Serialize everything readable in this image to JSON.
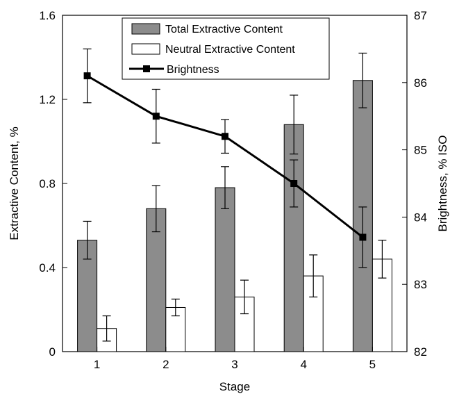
{
  "chart_data": {
    "type": "bar",
    "categories": [
      "1",
      "2",
      "3",
      "4",
      "5"
    ],
    "xlabel": "Stage",
    "ylabel": "Extractive Content, %",
    "y2label": "Brightness, % ISO",
    "ylim": [
      0,
      1.6
    ],
    "y2lim": [
      82,
      87
    ],
    "yticks": [
      "0",
      "0.4",
      "0.8",
      "1.2",
      "1.6"
    ],
    "y2ticks": [
      "82",
      "83",
      "84",
      "85",
      "86",
      "87"
    ],
    "grid": false,
    "legend": "top-center",
    "series": [
      {
        "name": "Total Extractive Content",
        "type": "bar",
        "axis": "left",
        "color": "#8c8c8c",
        "values": [
          0.53,
          0.68,
          0.78,
          1.08,
          1.29
        ],
        "error": [
          0.09,
          0.11,
          0.1,
          0.14,
          0.13
        ]
      },
      {
        "name": "Neutral Extractive Content",
        "type": "bar",
        "axis": "left",
        "color": "#ffffff",
        "values": [
          0.11,
          0.21,
          0.26,
          0.36,
          0.44
        ],
        "error": [
          0.06,
          0.04,
          0.08,
          0.1,
          0.09
        ]
      },
      {
        "name": "Brightness",
        "type": "line",
        "axis": "right",
        "color": "#000000",
        "marker": "square",
        "values": [
          86.1,
          85.5,
          85.2,
          84.5,
          83.7
        ],
        "error": [
          0.4,
          0.4,
          0.25,
          0.35,
          0.45
        ]
      }
    ]
  }
}
